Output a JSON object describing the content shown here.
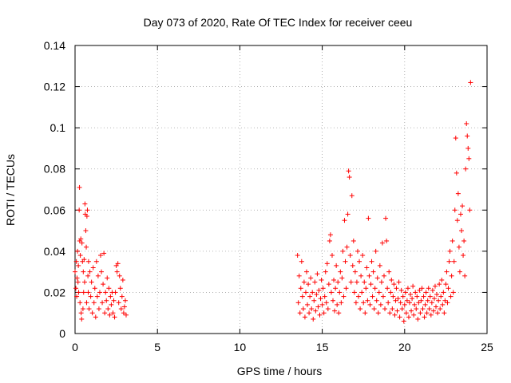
{
  "chart_data": {
    "type": "scatter",
    "title": "Day 073 of 2020, Rate Of TEC Index for receiver ceeu",
    "xlabel": "GPS time / hours",
    "ylabel": "ROTI / TECUs",
    "xlim": [
      0,
      25
    ],
    "ylim": [
      0,
      0.14
    ],
    "xticks": [
      0,
      5,
      10,
      15,
      20,
      25
    ],
    "yticks": [
      0,
      0.02,
      0.04,
      0.06,
      0.08,
      0.1,
      0.12,
      0.14
    ],
    "xtick_labels": [
      "0",
      "5",
      "10",
      "15",
      "20",
      "25"
    ],
    "ytick_labels": [
      "0",
      "0.02",
      "0.04",
      "0.06",
      "0.08",
      "0.1",
      "0.12",
      "0.14"
    ],
    "grid": true,
    "marker": "+",
    "color": "#ff0000",
    "series": [
      {
        "name": "ROTI",
        "points": [
          [
            0.0,
            0.03
          ],
          [
            0.05,
            0.022
          ],
          [
            0.08,
            0.035
          ],
          [
            0.1,
            0.018
          ],
          [
            0.12,
            0.027
          ],
          [
            0.15,
            0.04
          ],
          [
            0.18,
            0.025
          ],
          [
            0.2,
            0.033
          ],
          [
            0.22,
            0.02
          ],
          [
            0.25,
            0.06
          ],
          [
            0.27,
            0.071
          ],
          [
            0.28,
            0.045
          ],
          [
            0.3,
            0.015
          ],
          [
            0.32,
            0.038
          ],
          [
            0.35,
            0.046
          ],
          [
            0.37,
            0.01
          ],
          [
            0.4,
            0.007
          ],
          [
            0.42,
            0.044
          ],
          [
            0.45,
            0.035
          ],
          [
            0.48,
            0.012
          ],
          [
            0.5,
            0.03
          ],
          [
            0.52,
            0.02
          ],
          [
            0.55,
            0.036
          ],
          [
            0.58,
            0.025
          ],
          [
            0.6,
            0.063
          ],
          [
            0.62,
            0.058
          ],
          [
            0.65,
            0.05
          ],
          [
            0.68,
            0.042
          ],
          [
            0.7,
            0.015
          ],
          [
            0.72,
            0.057
          ],
          [
            0.75,
            0.06
          ],
          [
            0.78,
            0.028
          ],
          [
            0.8,
            0.02
          ],
          [
            0.82,
            0.035
          ],
          [
            0.85,
            0.012
          ],
          [
            0.9,
            0.03
          ],
          [
            0.95,
            0.018
          ],
          [
            1.0,
            0.025
          ],
          [
            1.05,
            0.01
          ],
          [
            1.1,
            0.032
          ],
          [
            1.15,
            0.015
          ],
          [
            1.2,
            0.022
          ],
          [
            1.25,
            0.008
          ],
          [
            1.3,
            0.035
          ],
          [
            1.35,
            0.018
          ],
          [
            1.4,
            0.028
          ],
          [
            1.45,
            0.012
          ],
          [
            1.5,
            0.02
          ],
          [
            1.55,
            0.038
          ],
          [
            1.6,
            0.03
          ],
          [
            1.65,
            0.015
          ],
          [
            1.7,
            0.024
          ],
          [
            1.75,
            0.039
          ],
          [
            1.8,
            0.01
          ],
          [
            1.85,
            0.02
          ],
          [
            1.9,
            0.016
          ],
          [
            1.95,
            0.027
          ],
          [
            2.0,
            0.012
          ],
          [
            2.05,
            0.022
          ],
          [
            2.1,
            0.009
          ],
          [
            2.15,
            0.018
          ],
          [
            2.2,
            0.014
          ],
          [
            2.25,
            0.02
          ],
          [
            2.3,
            0.01
          ],
          [
            2.35,
            0.016
          ],
          [
            2.4,
            0.008
          ],
          [
            2.45,
            0.02
          ],
          [
            2.5,
            0.033
          ],
          [
            2.55,
            0.03
          ],
          [
            2.6,
            0.034
          ],
          [
            2.65,
            0.015
          ],
          [
            2.7,
            0.028
          ],
          [
            2.75,
            0.022
          ],
          [
            2.8,
            0.012
          ],
          [
            2.85,
            0.018
          ],
          [
            2.9,
            0.026
          ],
          [
            2.95,
            0.01
          ],
          [
            3.0,
            0.013
          ],
          [
            3.05,
            0.016
          ],
          [
            3.1,
            0.009
          ],
          [
            13.5,
            0.038
          ],
          [
            13.55,
            0.015
          ],
          [
            13.6,
            0.028
          ],
          [
            13.65,
            0.01
          ],
          [
            13.7,
            0.022
          ],
          [
            13.75,
            0.035
          ],
          [
            13.8,
            0.018
          ],
          [
            13.85,
            0.012
          ],
          [
            13.9,
            0.025
          ],
          [
            13.95,
            0.008
          ],
          [
            14.0,
            0.02
          ],
          [
            14.05,
            0.03
          ],
          [
            14.1,
            0.014
          ],
          [
            14.15,
            0.024
          ],
          [
            14.2,
            0.01
          ],
          [
            14.25,
            0.018
          ],
          [
            14.3,
            0.027
          ],
          [
            14.35,
            0.012
          ],
          [
            14.4,
            0.02
          ],
          [
            14.45,
            0.007
          ],
          [
            14.5,
            0.016
          ],
          [
            14.55,
            0.025
          ],
          [
            14.6,
            0.011
          ],
          [
            14.65,
            0.019
          ],
          [
            14.7,
            0.029
          ],
          [
            14.75,
            0.013
          ],
          [
            14.8,
            0.021
          ],
          [
            14.85,
            0.009
          ],
          [
            14.9,
            0.017
          ],
          [
            14.95,
            0.026
          ],
          [
            15.0,
            0.014
          ],
          [
            15.05,
            0.022
          ],
          [
            15.1,
            0.01
          ],
          [
            15.15,
            0.018
          ],
          [
            15.2,
            0.03
          ],
          [
            15.25,
            0.015
          ],
          [
            15.3,
            0.034
          ],
          [
            15.35,
            0.012
          ],
          [
            15.4,
            0.024
          ],
          [
            15.45,
            0.045
          ],
          [
            15.5,
            0.048
          ],
          [
            15.55,
            0.02
          ],
          [
            15.6,
            0.038
          ],
          [
            15.65,
            0.016
          ],
          [
            15.7,
            0.026
          ],
          [
            15.75,
            0.011
          ],
          [
            15.8,
            0.022
          ],
          [
            15.85,
            0.033
          ],
          [
            15.9,
            0.014
          ],
          [
            15.95,
            0.025
          ],
          [
            16.0,
            0.01
          ],
          [
            16.05,
            0.02
          ],
          [
            16.1,
            0.03
          ],
          [
            16.15,
            0.015
          ],
          [
            16.2,
            0.027
          ],
          [
            16.25,
            0.04
          ],
          [
            16.3,
            0.018
          ],
          [
            16.35,
            0.055
          ],
          [
            16.4,
            0.035
          ],
          [
            16.45,
            0.022
          ],
          [
            16.5,
            0.042
          ],
          [
            16.55,
            0.058
          ],
          [
            16.6,
            0.079
          ],
          [
            16.65,
            0.076
          ],
          [
            16.7,
            0.038
          ],
          [
            16.75,
            0.025
          ],
          [
            16.8,
            0.067
          ],
          [
            16.85,
            0.033
          ],
          [
            16.9,
            0.045
          ],
          [
            16.95,
            0.02
          ],
          [
            17.0,
            0.03
          ],
          [
            17.05,
            0.015
          ],
          [
            17.1,
            0.025
          ],
          [
            17.15,
            0.04
          ],
          [
            17.2,
            0.018
          ],
          [
            17.25,
            0.035
          ],
          [
            17.3,
            0.012
          ],
          [
            17.35,
            0.028
          ],
          [
            17.4,
            0.02
          ],
          [
            17.45,
            0.038
          ],
          [
            17.5,
            0.015
          ],
          [
            17.55,
            0.025
          ],
          [
            17.6,
            0.01
          ],
          [
            17.65,
            0.022
          ],
          [
            17.7,
            0.032
          ],
          [
            17.75,
            0.016
          ],
          [
            17.8,
            0.056
          ],
          [
            17.85,
            0.028
          ],
          [
            17.9,
            0.014
          ],
          [
            17.95,
            0.024
          ],
          [
            18.0,
            0.035
          ],
          [
            18.05,
            0.018
          ],
          [
            18.1,
            0.03
          ],
          [
            18.15,
            0.012
          ],
          [
            18.2,
            0.022
          ],
          [
            18.25,
            0.04
          ],
          [
            18.3,
            0.016
          ],
          [
            18.35,
            0.027
          ],
          [
            18.4,
            0.01
          ],
          [
            18.45,
            0.02
          ],
          [
            18.5,
            0.033
          ],
          [
            18.55,
            0.014
          ],
          [
            18.6,
            0.025
          ],
          [
            18.65,
            0.044
          ],
          [
            18.7,
            0.018
          ],
          [
            18.75,
            0.028
          ],
          [
            18.8,
            0.012
          ],
          [
            18.85,
            0.056
          ],
          [
            18.9,
            0.045
          ],
          [
            18.95,
            0.022
          ],
          [
            19.0,
            0.015
          ],
          [
            19.05,
            0.03
          ],
          [
            19.1,
            0.01
          ],
          [
            19.15,
            0.02
          ],
          [
            19.2,
            0.026
          ],
          [
            19.25,
            0.012
          ],
          [
            19.3,
            0.018
          ],
          [
            19.35,
            0.024
          ],
          [
            19.4,
            0.009
          ],
          [
            19.45,
            0.016
          ],
          [
            19.5,
            0.022
          ],
          [
            19.55,
            0.011
          ],
          [
            19.6,
            0.017
          ],
          [
            19.65,
            0.025
          ],
          [
            19.7,
            0.008
          ],
          [
            19.75,
            0.015
          ],
          [
            19.8,
            0.021
          ],
          [
            19.85,
            0.012
          ],
          [
            19.9,
            0.018
          ],
          [
            19.95,
            0.006
          ],
          [
            20.0,
            0.014
          ],
          [
            20.05,
            0.02
          ],
          [
            20.1,
            0.01
          ],
          [
            20.15,
            0.016
          ],
          [
            20.2,
            0.022
          ],
          [
            20.25,
            0.008
          ],
          [
            20.3,
            0.015
          ],
          [
            20.35,
            0.019
          ],
          [
            20.4,
            0.011
          ],
          [
            20.45,
            0.017
          ],
          [
            20.5,
            0.023
          ],
          [
            20.55,
            0.009
          ],
          [
            20.6,
            0.014
          ],
          [
            20.65,
            0.02
          ],
          [
            20.7,
            0.012
          ],
          [
            20.75,
            0.018
          ],
          [
            20.8,
            0.007
          ],
          [
            20.85,
            0.015
          ],
          [
            20.9,
            0.021
          ],
          [
            20.95,
            0.01
          ],
          [
            21.0,
            0.016
          ],
          [
            21.05,
            0.022
          ],
          [
            21.1,
            0.012
          ],
          [
            21.15,
            0.018
          ],
          [
            21.2,
            0.008
          ],
          [
            21.25,
            0.014
          ],
          [
            21.3,
            0.02
          ],
          [
            21.35,
            0.01
          ],
          [
            21.4,
            0.016
          ],
          [
            21.45,
            0.022
          ],
          [
            21.5,
            0.012
          ],
          [
            21.55,
            0.018
          ],
          [
            21.6,
            0.009
          ],
          [
            21.65,
            0.015
          ],
          [
            21.7,
            0.021
          ],
          [
            21.75,
            0.011
          ],
          [
            21.8,
            0.017
          ],
          [
            21.85,
            0.023
          ],
          [
            21.9,
            0.013
          ],
          [
            21.95,
            0.019
          ],
          [
            22.0,
            0.01
          ],
          [
            22.05,
            0.016
          ],
          [
            22.1,
            0.024
          ],
          [
            22.15,
            0.012
          ],
          [
            22.2,
            0.018
          ],
          [
            22.25,
            0.026
          ],
          [
            22.3,
            0.014
          ],
          [
            22.35,
            0.02
          ],
          [
            22.4,
            0.01
          ],
          [
            22.45,
            0.016
          ],
          [
            22.5,
            0.024
          ],
          [
            22.55,
            0.03
          ],
          [
            22.6,
            0.015
          ],
          [
            22.65,
            0.022
          ],
          [
            22.7,
            0.035
          ],
          [
            22.75,
            0.04
          ],
          [
            22.8,
            0.018
          ],
          [
            22.85,
            0.028
          ],
          [
            22.9,
            0.045
          ],
          [
            22.95,
            0.02
          ],
          [
            23.0,
            0.035
          ],
          [
            23.05,
            0.06
          ],
          [
            23.1,
            0.095
          ],
          [
            23.15,
            0.078
          ],
          [
            23.2,
            0.055
          ],
          [
            23.25,
            0.068
          ],
          [
            23.3,
            0.042
          ],
          [
            23.35,
            0.03
          ],
          [
            23.4,
            0.058
          ],
          [
            23.45,
            0.05
          ],
          [
            23.5,
            0.062
          ],
          [
            23.55,
            0.038
          ],
          [
            23.6,
            0.045
          ],
          [
            23.65,
            0.028
          ],
          [
            23.7,
            0.08
          ],
          [
            23.75,
            0.102
          ],
          [
            23.8,
            0.096
          ],
          [
            23.85,
            0.09
          ],
          [
            23.9,
            0.085
          ],
          [
            23.95,
            0.06
          ],
          [
            24.0,
            0.122
          ]
        ]
      }
    ]
  }
}
